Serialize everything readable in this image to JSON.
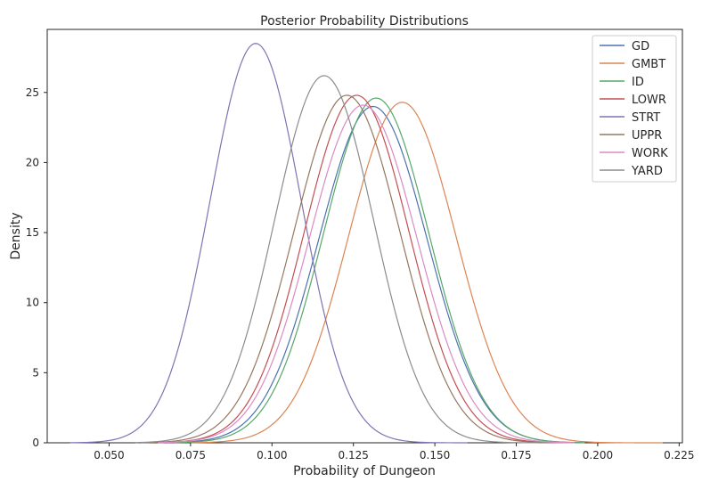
{
  "chart_data": {
    "type": "line",
    "title": "Posterior Probability Distributions",
    "xlabel": "Probability of Dungeon",
    "ylabel": "Density",
    "xlim": [
      0.031,
      0.226
    ],
    "ylim": [
      0,
      29.5
    ],
    "xticks": [
      0.05,
      0.075,
      0.1,
      0.125,
      0.15,
      0.175,
      0.2,
      0.225
    ],
    "xtick_labels": [
      "0.050",
      "0.075",
      "0.100",
      "0.125",
      "0.150",
      "0.175",
      "0.200",
      "0.225"
    ],
    "yticks": [
      0,
      5,
      10,
      15,
      20,
      25
    ],
    "ytick_labels": [
      "0",
      "5",
      "10",
      "15",
      "20",
      "25"
    ],
    "grid": false,
    "legend": "top-right",
    "series": [
      {
        "name": "GD",
        "color": "#4c72b0",
        "mean": 0.131,
        "sd": 0.0166,
        "peak": 24.0,
        "range": [
          0.068,
          0.195
        ]
      },
      {
        "name": "GMBT",
        "color": "#dd8452",
        "mean": 0.14,
        "sd": 0.0165,
        "peak": 24.3,
        "range": [
          0.075,
          0.22
        ]
      },
      {
        "name": "ID",
        "color": "#55a868",
        "mean": 0.132,
        "sd": 0.0162,
        "peak": 24.6,
        "range": [
          0.07,
          0.196
        ]
      },
      {
        "name": "LOWR",
        "color": "#c44e52",
        "mean": 0.126,
        "sd": 0.0161,
        "peak": 24.8,
        "range": [
          0.065,
          0.192
        ]
      },
      {
        "name": "STRT",
        "color": "#8172b3",
        "mean": 0.095,
        "sd": 0.014,
        "peak": 28.5,
        "range": [
          0.038,
          0.16
        ]
      },
      {
        "name": "UPPR",
        "color": "#937860",
        "mean": 0.123,
        "sd": 0.0163,
        "peak": 24.8,
        "range": [
          0.06,
          0.19
        ]
      },
      {
        "name": "WORK",
        "color": "#da8bc3",
        "mean": 0.128,
        "sd": 0.0165,
        "peak": 24.1,
        "range": [
          0.065,
          0.193
        ]
      },
      {
        "name": "YARD",
        "color": "#8c8c8c",
        "mean": 0.116,
        "sd": 0.0152,
        "peak": 26.2,
        "range": [
          0.058,
          0.185
        ]
      }
    ]
  }
}
